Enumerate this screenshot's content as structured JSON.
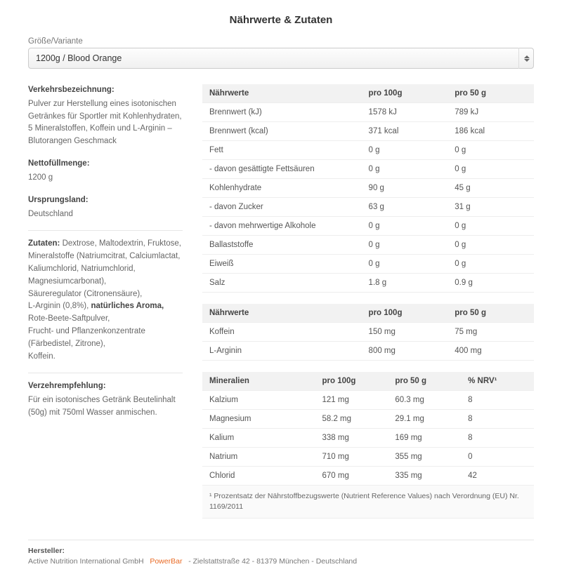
{
  "title": "Nährwerte & Zutaten",
  "variant": {
    "label": "Größe/Variante",
    "selected": "1200g / Blood Orange"
  },
  "left": {
    "verkehrsbezeichnung_label": "Verkehrsbezeichnung:",
    "verkehrsbezeichnung_text": "Pulver zur Herstellung eines isotonischen Getränkes für Sportler mit Kohlenhydraten, 5 Mineralstoffen, Koffein und L-Arginin – Blutorangen Geschmack",
    "netto_label": "Nettofüllmenge:",
    "netto_value": "1200 g",
    "ursprung_label": "Ursprungsland:",
    "ursprung_value": "Deutschland",
    "zutaten_label": "Zutaten:",
    "zutaten_parts": {
      "p1": "Dextrose, Maltodextrin, Fruktose,",
      "p2": "Mineralstoffe (Natriumcitrat, Calciumlactat, Kaliumchlorid, Natriumchlorid, Magnesiumcarbonat),",
      "p3": "Säureregulator (Citronensäure),",
      "p4": "L-Arginin (0,8%),",
      "p5_bold": "natürliches Aroma,",
      "p6": "Rote-Beete-Saftpulver,",
      "p7": "Frucht- und Pflanzenkonzentrate (Färbedistel, Zitrone),",
      "p8": "Koffein."
    },
    "verzehr_label": "Verzehrempfehlung:",
    "verzehr_text": "Für ein isotonisches Getränk Beutelinhalt (50g) mit 750ml Wasser anmischen."
  },
  "table1": {
    "headers": [
      "Nährwerte",
      "pro 100g",
      "pro 50 g"
    ],
    "rows": [
      [
        "Brennwert (kJ)",
        "1578 kJ",
        "789 kJ"
      ],
      [
        "Brennwert (kcal)",
        "371 kcal",
        "186 kcal"
      ],
      [
        "Fett",
        "0 g",
        "0 g"
      ],
      [
        "- davon gesättigte Fettsäuren",
        "0 g",
        "0 g"
      ],
      [
        "Kohlenhydrate",
        "90 g",
        "45 g"
      ],
      [
        "- davon Zucker",
        "63 g",
        "31 g"
      ],
      [
        "- davon mehrwertige Alkohole",
        "0 g",
        "0 g"
      ],
      [
        "Ballaststoffe",
        "0 g",
        "0 g"
      ],
      [
        "Eiweiß",
        "0 g",
        "0 g"
      ],
      [
        "Salz",
        "1.8 g",
        "0.9 g"
      ]
    ]
  },
  "table2": {
    "headers": [
      "Nährwerte",
      "pro 100g",
      "pro 50 g"
    ],
    "rows": [
      [
        "Koffein",
        "150 mg",
        "75 mg"
      ],
      [
        "L-Arginin",
        "800 mg",
        "400 mg"
      ]
    ]
  },
  "table3": {
    "headers": [
      "Mineralien",
      "pro 100g",
      "pro 50 g",
      "% NRV¹"
    ],
    "rows": [
      [
        "Kalzium",
        "121 mg",
        "60.3 mg",
        "8"
      ],
      [
        "Magnesium",
        "58.2 mg",
        "29.1 mg",
        "8"
      ],
      [
        "Kalium",
        "338 mg",
        "169 mg",
        "8"
      ],
      [
        "Natrium",
        "710 mg",
        "355 mg",
        "0"
      ],
      [
        "Chlorid",
        "670 mg",
        "335 mg",
        "42"
      ]
    ],
    "footnote": "¹ Prozentsatz der Nährstoffbezugswerte (Nutrient Reference Values) nach Verordnung (EU) Nr. 1169/2011"
  },
  "manufacturer": {
    "label": "Hersteller:",
    "company": "Active Nutrition International GmbH",
    "brand": "PowerBar",
    "address": "- Zielstattstraße 42 - 81379 München - Deutschland"
  },
  "col_widths": {
    "c3_1": "48%",
    "c3_2": "26%",
    "c3_3": "26%",
    "c4_1": "34%",
    "c4_2": "22%",
    "c4_3": "22%",
    "c4_4": "22%"
  }
}
